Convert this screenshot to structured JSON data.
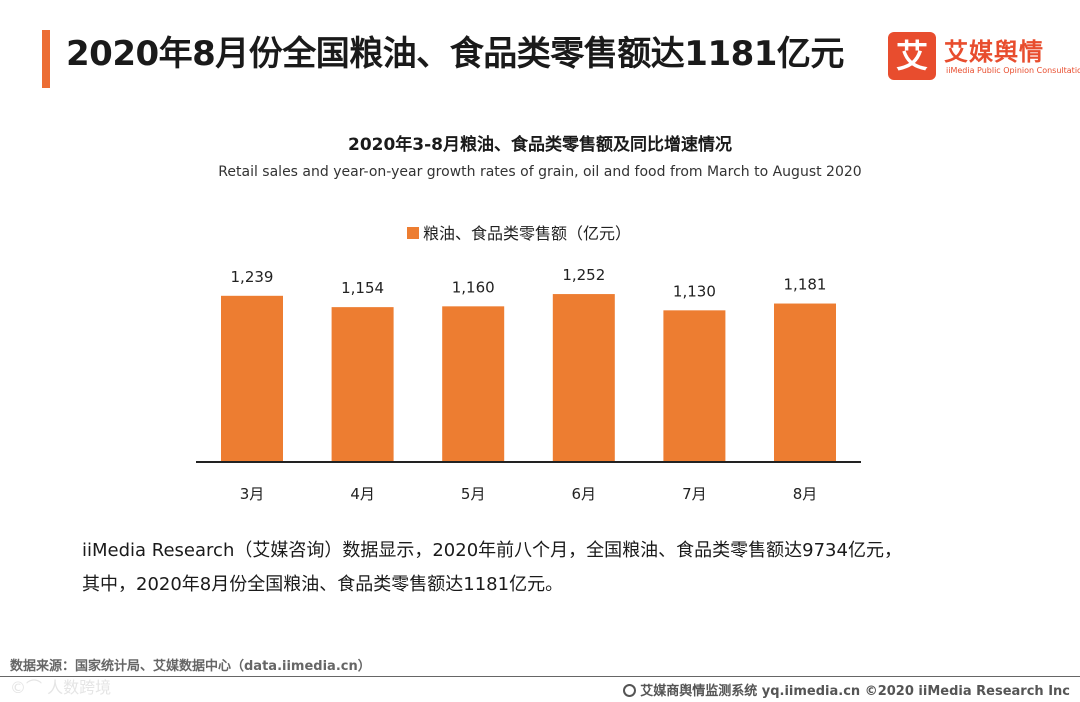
{
  "header": {
    "title": "2020年8月份全国粮油、食品类零售额达1181亿元",
    "logo_mark": "艾",
    "logo_name": "艾媒舆情",
    "logo_sub": "iiMedia Public Opinion Consultation"
  },
  "chart_data": {
    "type": "bar",
    "title": "2020年3-8月粮油、食品类零售额及同比增速情况",
    "subtitle": "Retail sales and year-on-year growth rates of grain, oil and food from March to August 2020",
    "categories": [
      "3月",
      "4月",
      "5月",
      "6月",
      "7月",
      "8月"
    ],
    "series": [
      {
        "name": "粮油、食品类零售额（亿元）",
        "values": [
          1239,
          1154,
          1160,
          1252,
          1130,
          1181
        ]
      }
    ],
    "value_labels": [
      "1,239",
      "1,154",
      "1,160",
      "1,252",
      "1,130",
      "1,181"
    ],
    "ylim": [
      0,
      1260
    ],
    "xlabel": "",
    "ylabel": "",
    "grid": false,
    "legend_position": "top",
    "color": "#ed7d31"
  },
  "description": {
    "line1": "iiMedia Research（艾媒咨询）数据显示，2020年前八个月，全国粮油、食品类零售额达9734亿元，",
    "line2": "其中，2020年8月份全国粮油、食品类零售额达1181亿元。"
  },
  "source": "数据来源：国家统计局、艾媒数据中心（data.iimedia.cn）",
  "footer": "艾媒商舆情监测系统 yq.iimedia.cn  ©2020  iiMedia Research  Inc",
  "watermark": "©⌒ 人数跨境"
}
